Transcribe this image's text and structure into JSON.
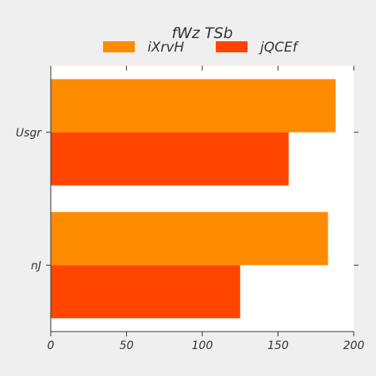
{
  "chart_data": {
    "type": "bar",
    "orientation": "horizontal",
    "title": "fWz TSb",
    "xlabel": "",
    "ylabel": "",
    "categories": [
      "Usgr",
      "nJ"
    ],
    "series": [
      {
        "name": "iXrvH",
        "color": "#ff8c00",
        "values": [
          188,
          183
        ]
      },
      {
        "name": "jQCEf",
        "color": "#ff4500",
        "values": [
          157,
          125
        ]
      }
    ],
    "xlim": [
      0,
      200
    ],
    "xticks": [
      "0",
      "50",
      "100",
      "150",
      "200"
    ],
    "grid": false,
    "legend_position": "top"
  }
}
